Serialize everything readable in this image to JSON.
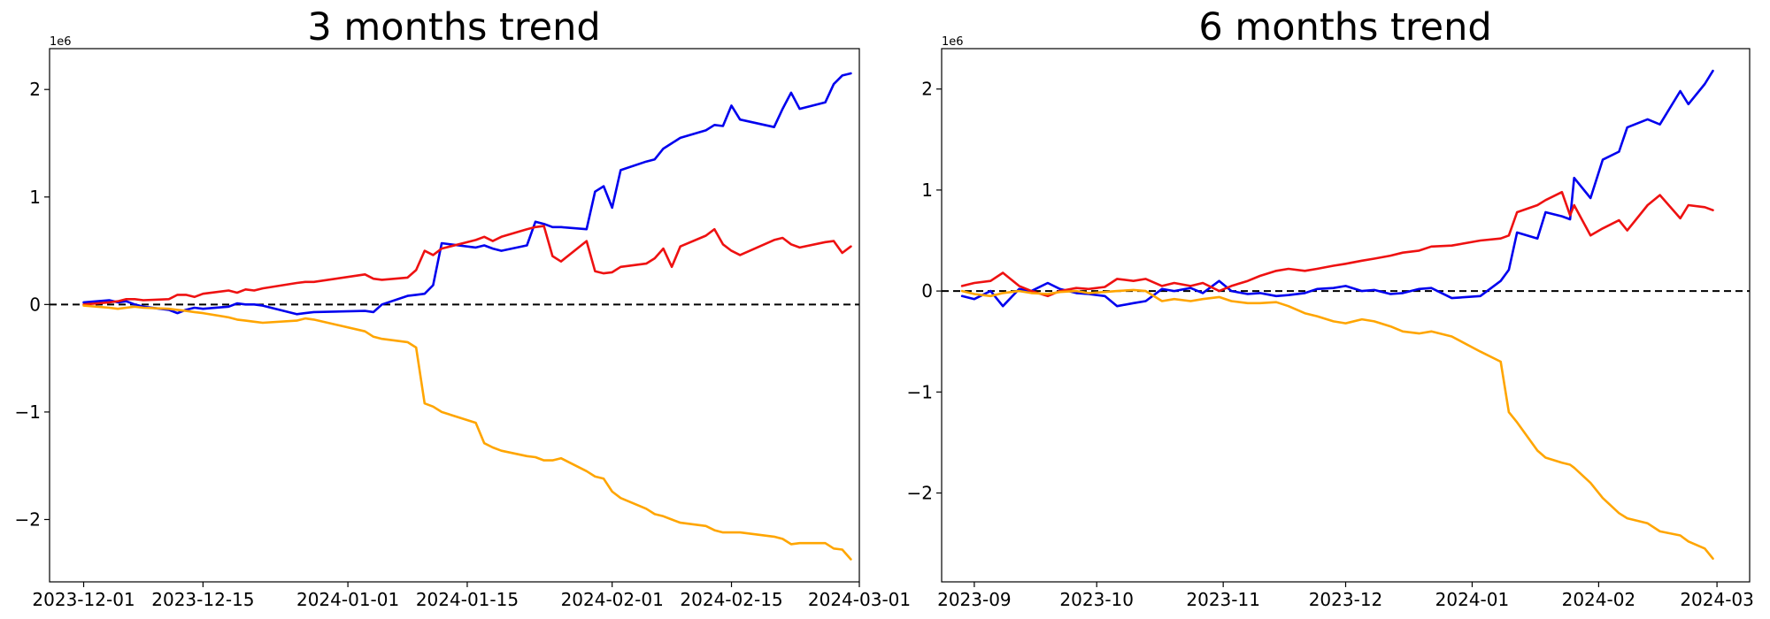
{
  "chart_data": [
    {
      "type": "line",
      "title": "3 months trend",
      "xlabel": "",
      "ylabel": "",
      "y_offset_label": "1e6",
      "x_tick_labels": [
        "2023-12-01",
        "2023-12-15",
        "2024-01-01",
        "2024-01-15",
        "2024-02-01",
        "2024-02-15",
        "2024-03-01"
      ],
      "x_ticks": [
        "2023-12-01",
        "2023-12-15",
        "2024-01-01",
        "2024-01-15",
        "2024-02-01",
        "2024-02-15",
        "2024-03-01"
      ],
      "y_ticks": [
        -2,
        -1,
        0,
        1,
        2
      ],
      "y_tick_labels": [
        "−2",
        "−1",
        "0",
        "1",
        "2"
      ],
      "xlim": [
        "2023-11-27",
        "2024-03-01"
      ],
      "ylim": [
        -2.58,
        2.38
      ],
      "reference_line": {
        "y": 0,
        "style": "dashed",
        "color": "#000000"
      },
      "grid": false,
      "series": [
        {
          "color": "#0000ee",
          "x": [
            "2023-12-01",
            "2023-12-04",
            "2023-12-05",
            "2023-12-06",
            "2023-12-07",
            "2023-12-08",
            "2023-12-11",
            "2023-12-12",
            "2023-12-13",
            "2023-12-14",
            "2023-12-15",
            "2023-12-18",
            "2023-12-19",
            "2023-12-20",
            "2023-12-21",
            "2023-12-22",
            "2023-12-26",
            "2023-12-27",
            "2023-12-28",
            "2024-01-03",
            "2024-01-04",
            "2024-01-05",
            "2024-01-08",
            "2024-01-09",
            "2024-01-10",
            "2024-01-11",
            "2024-01-12",
            "2024-01-16",
            "2024-01-17",
            "2024-01-18",
            "2024-01-19",
            "2024-01-22",
            "2024-01-23",
            "2024-01-24",
            "2024-01-25",
            "2024-01-26",
            "2024-01-29",
            "2024-01-30",
            "2024-01-31",
            "2024-02-01",
            "2024-02-02",
            "2024-02-05",
            "2024-02-06",
            "2024-02-07",
            "2024-02-08",
            "2024-02-09",
            "2024-02-12",
            "2024-02-13",
            "2024-02-14",
            "2024-02-15",
            "2024-02-16",
            "2024-02-20",
            "2024-02-21",
            "2024-02-22",
            "2024-02-23",
            "2024-02-26",
            "2024-02-27",
            "2024-02-28",
            "2024-02-29"
          ],
          "values": [
            0.02,
            0.04,
            0.02,
            0.03,
            0.0,
            -0.02,
            -0.05,
            -0.08,
            -0.05,
            -0.03,
            -0.04,
            -0.02,
            0.01,
            0.0,
            0.0,
            -0.01,
            -0.09,
            -0.08,
            -0.07,
            -0.06,
            -0.07,
            0.0,
            0.08,
            0.09,
            0.1,
            0.18,
            0.57,
            0.53,
            0.55,
            0.52,
            0.5,
            0.55,
            0.77,
            0.75,
            0.72,
            0.72,
            0.7,
            1.05,
            1.1,
            0.9,
            1.25,
            1.33,
            1.35,
            1.45,
            1.5,
            1.55,
            1.62,
            1.67,
            1.66,
            1.85,
            1.72,
            1.65,
            1.82,
            1.97,
            1.82,
            1.88,
            2.05,
            2.13,
            2.15
          ]
        },
        {
          "color": "#ee1111",
          "x": [
            "2023-12-01",
            "2023-12-04",
            "2023-12-05",
            "2023-12-06",
            "2023-12-07",
            "2023-12-08",
            "2023-12-11",
            "2023-12-12",
            "2023-12-13",
            "2023-12-14",
            "2023-12-15",
            "2023-12-18",
            "2023-12-19",
            "2023-12-20",
            "2023-12-21",
            "2023-12-22",
            "2023-12-26",
            "2023-12-27",
            "2023-12-28",
            "2024-01-03",
            "2024-01-04",
            "2024-01-05",
            "2024-01-08",
            "2024-01-09",
            "2024-01-10",
            "2024-01-11",
            "2024-01-12",
            "2024-01-16",
            "2024-01-17",
            "2024-01-18",
            "2024-01-19",
            "2024-01-22",
            "2024-01-23",
            "2024-01-24",
            "2024-01-25",
            "2024-01-26",
            "2024-01-29",
            "2024-01-30",
            "2024-01-31",
            "2024-02-01",
            "2024-02-02",
            "2024-02-05",
            "2024-02-06",
            "2024-02-07",
            "2024-02-08",
            "2024-02-09",
            "2024-02-12",
            "2024-02-13",
            "2024-02-14",
            "2024-02-15",
            "2024-02-16",
            "2024-02-20",
            "2024-02-21",
            "2024-02-22",
            "2024-02-23",
            "2024-02-26",
            "2024-02-27",
            "2024-02-28",
            "2024-02-29"
          ],
          "values": [
            0.0,
            0.02,
            0.03,
            0.05,
            0.05,
            0.04,
            0.05,
            0.09,
            0.09,
            0.07,
            0.1,
            0.13,
            0.11,
            0.14,
            0.13,
            0.15,
            0.2,
            0.21,
            0.21,
            0.28,
            0.24,
            0.23,
            0.25,
            0.32,
            0.5,
            0.46,
            0.52,
            0.6,
            0.63,
            0.59,
            0.63,
            0.7,
            0.72,
            0.73,
            0.45,
            0.4,
            0.59,
            0.31,
            0.29,
            0.3,
            0.35,
            0.38,
            0.43,
            0.52,
            0.35,
            0.54,
            0.64,
            0.7,
            0.56,
            0.5,
            0.46,
            0.6,
            0.62,
            0.56,
            0.53,
            0.58,
            0.59,
            0.48,
            0.54
          ]
        },
        {
          "color": "#ffa500",
          "x": [
            "2023-12-01",
            "2023-12-04",
            "2023-12-05",
            "2023-12-06",
            "2023-12-07",
            "2023-12-08",
            "2023-12-11",
            "2023-12-12",
            "2023-12-13",
            "2023-12-14",
            "2023-12-15",
            "2023-12-18",
            "2023-12-19",
            "2023-12-20",
            "2023-12-21",
            "2023-12-22",
            "2023-12-26",
            "2023-12-27",
            "2023-12-28",
            "2024-01-03",
            "2024-01-04",
            "2024-01-05",
            "2024-01-08",
            "2024-01-09",
            "2024-01-10",
            "2024-01-11",
            "2024-01-12",
            "2024-01-16",
            "2024-01-17",
            "2024-01-18",
            "2024-01-19",
            "2024-01-22",
            "2024-01-23",
            "2024-01-24",
            "2024-01-25",
            "2024-01-26",
            "2024-01-29",
            "2024-01-30",
            "2024-01-31",
            "2024-02-01",
            "2024-02-02",
            "2024-02-05",
            "2024-02-06",
            "2024-02-07",
            "2024-02-08",
            "2024-02-09",
            "2024-02-12",
            "2024-02-13",
            "2024-02-14",
            "2024-02-15",
            "2024-02-16",
            "2024-02-20",
            "2024-02-21",
            "2024-02-22",
            "2024-02-23",
            "2024-02-26",
            "2024-02-27",
            "2024-02-28",
            "2024-02-29"
          ],
          "values": [
            -0.01,
            -0.03,
            -0.04,
            -0.03,
            -0.02,
            -0.03,
            -0.04,
            -0.05,
            -0.06,
            -0.07,
            -0.08,
            -0.12,
            -0.14,
            -0.15,
            -0.16,
            -0.17,
            -0.15,
            -0.13,
            -0.14,
            -0.25,
            -0.3,
            -0.32,
            -0.35,
            -0.4,
            -0.92,
            -0.95,
            -1.0,
            -1.1,
            -1.29,
            -1.33,
            -1.36,
            -1.41,
            -1.42,
            -1.45,
            -1.45,
            -1.43,
            -1.55,
            -1.6,
            -1.62,
            -1.74,
            -1.8,
            -1.9,
            -1.95,
            -1.97,
            -2.0,
            -2.03,
            -2.06,
            -2.1,
            -2.12,
            -2.12,
            -2.12,
            -2.16,
            -2.18,
            -2.23,
            -2.22,
            -2.22,
            -2.27,
            -2.28,
            -2.37
          ]
        }
      ]
    },
    {
      "type": "line",
      "title": "6 months trend",
      "xlabel": "",
      "ylabel": "",
      "y_offset_label": "1e6",
      "x_tick_labels": [
        "2023-09",
        "2023-10",
        "2023-11",
        "2023-12",
        "2024-01",
        "2024-02",
        "2024-03"
      ],
      "x_ticks": [
        "2023-09-01",
        "2023-10-01",
        "2023-11-01",
        "2023-12-01",
        "2024-01-01",
        "2024-02-01",
        "2024-03-01"
      ],
      "y_ticks": [
        -2,
        -1,
        0,
        1,
        2
      ],
      "y_tick_labels": [
        "−2",
        "−1",
        "0",
        "1",
        "2"
      ],
      "xlim": [
        "2023-08-24",
        "2024-03-09"
      ],
      "ylim": [
        -2.88,
        2.4
      ],
      "reference_line": {
        "y": 0,
        "style": "dashed",
        "color": "#000000"
      },
      "grid": false,
      "series": [
        {
          "color": "#0000ee",
          "x": [
            "2023-08-29",
            "2023-09-01",
            "2023-09-05",
            "2023-09-08",
            "2023-09-12",
            "2023-09-15",
            "2023-09-19",
            "2023-09-22",
            "2023-09-26",
            "2023-09-29",
            "2023-10-03",
            "2023-10-06",
            "2023-10-10",
            "2023-10-13",
            "2023-10-17",
            "2023-10-20",
            "2023-10-24",
            "2023-10-27",
            "2023-10-31",
            "2023-11-03",
            "2023-11-07",
            "2023-11-10",
            "2023-11-14",
            "2023-11-17",
            "2023-11-21",
            "2023-11-24",
            "2023-11-28",
            "2023-12-01",
            "2023-12-05",
            "2023-12-08",
            "2023-12-12",
            "2023-12-15",
            "2023-12-19",
            "2023-12-22",
            "2023-12-27",
            "2024-01-03",
            "2024-01-08",
            "2024-01-10",
            "2024-01-12",
            "2024-01-17",
            "2024-01-19",
            "2024-01-23",
            "2024-01-25",
            "2024-01-26",
            "2024-01-30",
            "2024-02-02",
            "2024-02-06",
            "2024-02-08",
            "2024-02-13",
            "2024-02-16",
            "2024-02-21",
            "2024-02-23",
            "2024-02-27",
            "2024-02-29"
          ],
          "values": [
            -0.05,
            -0.08,
            0.0,
            -0.15,
            0.02,
            0.0,
            0.08,
            0.02,
            -0.02,
            -0.03,
            -0.05,
            -0.15,
            -0.12,
            -0.1,
            0.02,
            0.0,
            0.03,
            -0.02,
            0.1,
            0.0,
            -0.03,
            -0.02,
            -0.05,
            -0.04,
            -0.02,
            0.02,
            0.03,
            0.05,
            0.0,
            0.01,
            -0.03,
            -0.02,
            0.02,
            0.03,
            -0.07,
            -0.05,
            0.1,
            0.21,
            0.58,
            0.52,
            0.78,
            0.74,
            0.71,
            1.12,
            0.92,
            1.3,
            1.38,
            1.62,
            1.7,
            1.65,
            1.98,
            1.85,
            2.05,
            2.18
          ]
        },
        {
          "color": "#ee1111",
          "x": [
            "2023-08-29",
            "2023-09-01",
            "2023-09-05",
            "2023-09-08",
            "2023-09-12",
            "2023-09-15",
            "2023-09-19",
            "2023-09-22",
            "2023-09-26",
            "2023-09-29",
            "2023-10-03",
            "2023-10-06",
            "2023-10-10",
            "2023-10-13",
            "2023-10-17",
            "2023-10-20",
            "2023-10-24",
            "2023-10-27",
            "2023-10-31",
            "2023-11-03",
            "2023-11-07",
            "2023-11-10",
            "2023-11-14",
            "2023-11-17",
            "2023-11-21",
            "2023-11-24",
            "2023-11-28",
            "2023-12-01",
            "2023-12-05",
            "2023-12-08",
            "2023-12-12",
            "2023-12-15",
            "2023-12-19",
            "2023-12-22",
            "2023-12-27",
            "2024-01-03",
            "2024-01-08",
            "2024-01-10",
            "2024-01-12",
            "2024-01-17",
            "2024-01-19",
            "2024-01-23",
            "2024-01-25",
            "2024-01-26",
            "2024-01-30",
            "2024-02-02",
            "2024-02-06",
            "2024-02-08",
            "2024-02-13",
            "2024-02-16",
            "2024-02-21",
            "2024-02-23",
            "2024-02-27",
            "2024-02-29"
          ],
          "values": [
            0.05,
            0.08,
            0.1,
            0.18,
            0.05,
            0.0,
            -0.05,
            0.0,
            0.03,
            0.02,
            0.04,
            0.12,
            0.1,
            0.12,
            0.05,
            0.08,
            0.05,
            0.08,
            0.0,
            0.05,
            0.1,
            0.15,
            0.2,
            0.22,
            0.2,
            0.22,
            0.25,
            0.27,
            0.3,
            0.32,
            0.35,
            0.38,
            0.4,
            0.44,
            0.45,
            0.5,
            0.52,
            0.55,
            0.78,
            0.85,
            0.9,
            0.98,
            0.75,
            0.85,
            0.55,
            0.62,
            0.7,
            0.6,
            0.85,
            0.95,
            0.72,
            0.85,
            0.83,
            0.8
          ]
        },
        {
          "color": "#ffa500",
          "x": [
            "2023-08-29",
            "2023-09-01",
            "2023-09-05",
            "2023-09-08",
            "2023-09-12",
            "2023-09-15",
            "2023-09-19",
            "2023-09-22",
            "2023-09-26",
            "2023-09-29",
            "2023-10-03",
            "2023-10-06",
            "2023-10-10",
            "2023-10-13",
            "2023-10-17",
            "2023-10-20",
            "2023-10-24",
            "2023-10-27",
            "2023-10-31",
            "2023-11-03",
            "2023-11-07",
            "2023-11-10",
            "2023-11-14",
            "2023-11-17",
            "2023-11-21",
            "2023-11-24",
            "2023-11-28",
            "2023-12-01",
            "2023-12-05",
            "2023-12-08",
            "2023-12-12",
            "2023-12-15",
            "2023-12-19",
            "2023-12-22",
            "2023-12-27",
            "2024-01-03",
            "2024-01-08",
            "2024-01-10",
            "2024-01-12",
            "2024-01-17",
            "2024-01-19",
            "2024-01-23",
            "2024-01-25",
            "2024-01-26",
            "2024-01-30",
            "2024-02-02",
            "2024-02-06",
            "2024-02-08",
            "2024-02-13",
            "2024-02-16",
            "2024-02-21",
            "2024-02-23",
            "2024-02-27",
            "2024-02-29"
          ],
          "values": [
            0.0,
            -0.03,
            -0.05,
            -0.02,
            0.0,
            -0.02,
            -0.03,
            -0.01,
            0.0,
            -0.02,
            -0.01,
            0.0,
            0.01,
            0.0,
            -0.1,
            -0.08,
            -0.1,
            -0.08,
            -0.06,
            -0.1,
            -0.12,
            -0.12,
            -0.11,
            -0.15,
            -0.22,
            -0.25,
            -0.3,
            -0.32,
            -0.28,
            -0.3,
            -0.35,
            -0.4,
            -0.42,
            -0.4,
            -0.45,
            -0.6,
            -0.7,
            -1.2,
            -1.3,
            -1.58,
            -1.65,
            -1.7,
            -1.72,
            -1.75,
            -1.9,
            -2.05,
            -2.2,
            -2.25,
            -2.3,
            -2.38,
            -2.42,
            -2.48,
            -2.55,
            -2.65
          ]
        }
      ]
    }
  ]
}
